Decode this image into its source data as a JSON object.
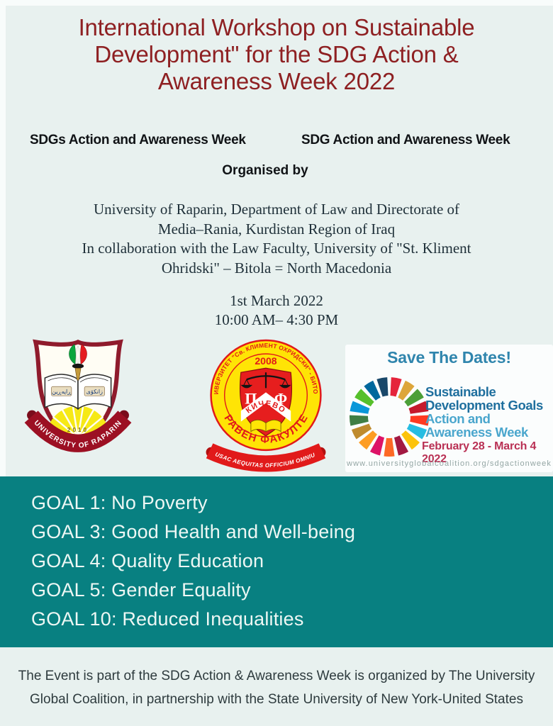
{
  "header": {
    "title": "International Workshop on Sustainable Development\" for the SDG Action & Awareness Week 2022",
    "left_label": "SDGs Action and Awareness Week",
    "right_label": "SDG Action and Awareness Week",
    "organised_by": "Organised by"
  },
  "organiser": {
    "lines": [
      "University of Raparin, Department of Law and Directorate of",
      "Media–Rania, Kurdistan Region of Iraq",
      "In collaboration with the Law Faculty, University of \"St. Kliment",
      "Ohridski\" – Bitola = North Macedonia"
    ],
    "date": "1st March 2022",
    "time": "10:00 AM– 4:30 PM"
  },
  "logos": {
    "raparin": {
      "name_curved": "UNIVERSITY  OF  RAPARIN",
      "year": "2010",
      "book_text_left": "ڕاپەڕین",
      "book_text_right": "زانكۆی"
    },
    "law_faculty": {
      "ring_text": "УНИВЕРЗИТЕТ \"Св. КЛИМЕНТ ОХРИДСКИ\" - БИТОЛА",
      "year": "2008",
      "letter_left": "Π",
      "letter_right": "Φ",
      "chevron_text": "КИЧЕВО",
      "bottom_text": "ПРАВЕН ФАКУЛТЕТ",
      "ribbon_text": "JUSAC AEQUITAS OFFICIUM OMNIUM"
    },
    "sdg_card": {
      "save_the_dates": "Save The Dates!",
      "line1": "Sustainable",
      "line2": "Development Goals",
      "line3": "Action and",
      "line4": "Awareness Week",
      "dates": "February 28 - March 4 2022",
      "url": "www.universityglobalcoalition.org/sdgactionweek",
      "wheel_colors": [
        "#E5243B",
        "#DDA63A",
        "#4C9F38",
        "#C5192D",
        "#FF3A21",
        "#26BDE2",
        "#FCC30B",
        "#A21942",
        "#FD6925",
        "#DD1367",
        "#FD9D24",
        "#BF8B2E",
        "#3F7E44",
        "#0A97D9",
        "#56C02B",
        "#00689D",
        "#19486A"
      ]
    }
  },
  "goals": {
    "items": [
      "GOAL 1: No Poverty",
      "GOAL 3: Good Health and Well-being",
      "GOAL 4: Quality Education",
      "GOAL 5: Gender Equality",
      "GOAL 10: Reduced Inequalities"
    ]
  },
  "footer": {
    "line1": "The Event is part of the SDG Action & Awareness Week is organized by The University",
    "line2": "Global Coalition, in partnership with the State University of New York-United States"
  },
  "colors": {
    "background": "#e8f1ef",
    "title_red": "#8e2022",
    "teal_band": "#088081",
    "goal_text": "#edf7f4",
    "sdg_blue_dark": "#1f6f9e",
    "sdg_blue_light": "#4aa6cd",
    "sdg_date_red": "#b93054",
    "save_dates_blue": "#2f85ad",
    "footer_text": "#2e3b3e"
  }
}
